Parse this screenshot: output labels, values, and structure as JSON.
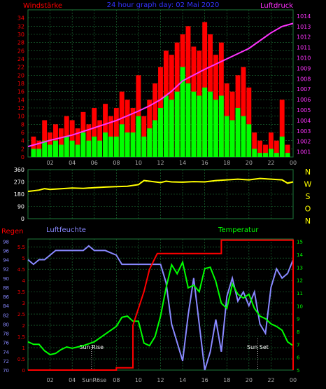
{
  "colors": {
    "background": "#000000",
    "gust": "#ff0000",
    "wind": "#00ff00",
    "pressure": "#ff33ff",
    "direction": "#ffff00",
    "rain": "#ff0000",
    "humidity": "#8888ff",
    "temperature": "#00ff00",
    "grid": "#1e7a3a",
    "title": "#3333ff"
  },
  "chart_data": [
    {
      "type": "bar",
      "title": "24 hour graph day: 02 Mai 2020",
      "ylabel": "Windstärke",
      "y2label": "Luftdruck",
      "ylim": [
        0,
        36
      ],
      "y2lim": [
        1000.5,
        1014.6
      ],
      "yticks": [
        "0",
        "2",
        "4",
        "6",
        "8",
        "10",
        "12",
        "14",
        "16",
        "18",
        "20",
        "22",
        "24",
        "26",
        "28",
        "30",
        "32",
        "34"
      ],
      "y2ticks": [
        "1001",
        "1002",
        "1003",
        "1004",
        "1005",
        "1006",
        "1007",
        "1008",
        "1009",
        "1010",
        "1011",
        "1012",
        "1013",
        "1014"
      ],
      "xticks": [
        "02",
        "04",
        "06",
        "08",
        "10",
        "12",
        "14",
        "16",
        "18",
        "20",
        "22",
        "00"
      ],
      "x_hours": [
        2,
        4,
        6,
        8,
        10,
        12,
        14,
        16,
        18,
        20,
        22,
        24
      ],
      "series": [
        {
          "name": "gust",
          "x": [
            0.5,
            1,
            1.5,
            2,
            2.5,
            3,
            3.5,
            4,
            4.5,
            5,
            5.5,
            6,
            6.5,
            7,
            7.5,
            8,
            8.5,
            9,
            9.5,
            10,
            10.5,
            11,
            11.5,
            12,
            12.5,
            13,
            13.5,
            14,
            14.5,
            15,
            15.5,
            16,
            16.5,
            17,
            17.5,
            18,
            18.5,
            19,
            19.5,
            20,
            20.5,
            21,
            21.5,
            22,
            22.5,
            23,
            23.5
          ],
          "values": [
            5,
            4,
            9,
            6,
            8,
            7,
            10,
            9,
            7,
            11,
            8,
            12,
            9,
            13,
            10,
            12,
            16,
            14,
            12,
            20,
            10,
            14,
            18,
            22,
            26,
            25,
            28,
            30,
            32,
            27,
            26,
            33,
            30,
            25,
            28,
            18,
            16,
            20,
            22,
            17,
            6,
            4,
            3,
            6,
            4,
            14,
            3
          ]
        },
        {
          "name": "wind",
          "x": [
            0.5,
            1,
            1.5,
            2,
            2.5,
            3,
            3.5,
            4,
            4.5,
            5,
            5.5,
            6,
            6.5,
            7,
            7.5,
            8,
            8.5,
            9,
            9.5,
            10,
            10.5,
            11,
            11.5,
            12,
            12.5,
            13,
            13.5,
            14,
            14.5,
            15,
            15.5,
            16,
            16.5,
            17,
            17.5,
            18,
            18.5,
            19,
            19.5,
            20,
            20.5,
            21,
            21.5,
            22,
            22.5,
            23,
            23.5
          ],
          "values": [
            2,
            2,
            4,
            3,
            4,
            3,
            5,
            4,
            3,
            6,
            4,
            5,
            4,
            6,
            5,
            5,
            8,
            6,
            6,
            10,
            5,
            7,
            9,
            12,
            15,
            14,
            16,
            22,
            18,
            16,
            15,
            17,
            16,
            14,
            15,
            10,
            9,
            12,
            10,
            8,
            2,
            1,
            1,
            2,
            1,
            5,
            1
          ]
        },
        {
          "name": "pressure",
          "x": [
            0,
            2,
            4,
            6,
            8,
            10,
            11,
            12,
            13,
            14,
            16,
            18,
            20,
            22,
            23,
            24
          ],
          "values": [
            1001.5,
            1002.1,
            1002.6,
            1003.3,
            1004.0,
            1004.9,
            1005.4,
            1006.0,
            1006.8,
            1007.8,
            1008.9,
            1009.9,
            1010.9,
            1012.4,
            1013.0,
            1013.3
          ]
        }
      ]
    },
    {
      "type": "line",
      "ylim": [
        0,
        360
      ],
      "yticks": [
        "0",
        "90",
        "180",
        "270",
        "360"
      ],
      "y2ticks": [
        "N",
        "W",
        "S",
        "O",
        "N"
      ],
      "xticks": [
        "02",
        "04",
        "06",
        "08",
        "10",
        "12",
        "14",
        "16",
        "18",
        "20",
        "22",
        "00"
      ],
      "x_hours": [
        2,
        4,
        6,
        8,
        10,
        12,
        14,
        16,
        18,
        20,
        22,
        24
      ],
      "series": [
        {
          "name": "direction",
          "x": [
            0,
            1,
            1.5,
            2,
            3,
            4,
            5,
            6,
            7,
            8,
            9,
            10,
            10.5,
            11,
            12,
            12.5,
            13,
            14,
            15,
            16,
            17,
            18,
            19,
            20,
            21,
            22,
            23,
            23.5,
            24
          ],
          "values": [
            200,
            210,
            220,
            215,
            220,
            225,
            222,
            228,
            232,
            235,
            238,
            250,
            280,
            275,
            265,
            275,
            270,
            268,
            272,
            270,
            280,
            285,
            290,
            285,
            295,
            290,
            285,
            260,
            270
          ]
        }
      ]
    },
    {
      "type": "line",
      "ylabel": "Regen",
      "y2label": "Luftfeuchte",
      "y3label": "Temperatur",
      "rain_ticks": [
        "0",
        "0.5",
        "1",
        "1.5",
        "2",
        "2.5",
        "3",
        "3.5",
        "4",
        "4.5",
        "5",
        "5.5"
      ],
      "humidity_ticks": [
        "70",
        "72",
        "74",
        "76",
        "78",
        "80",
        "82",
        "84",
        "86",
        "88",
        "90",
        "92",
        "94",
        "96",
        "98"
      ],
      "temperature_ticks": [
        "5",
        "6",
        "7",
        "8",
        "9",
        "10",
        "11",
        "12",
        "13",
        "14",
        "15"
      ],
      "xticks": [
        "02",
        "04",
        "SunR6se",
        "08",
        "10",
        "12",
        "14",
        "16",
        "18",
        "20",
        "22",
        "00"
      ],
      "x_hours": [
        2,
        4,
        6,
        8,
        10,
        12,
        14,
        16,
        18,
        20,
        22,
        24
      ],
      "annotations": [
        {
          "text": "Sun Rise",
          "x": 5.75
        },
        {
          "text": "Sun Set",
          "x": 20.8
        }
      ],
      "series": [
        {
          "name": "rain",
          "x": [
            0,
            8,
            8,
            9.5,
            9.5,
            10.5,
            11,
            11.5,
            11.7,
            17.5,
            17.5,
            24,
            24
          ],
          "values": [
            0,
            0,
            0.1,
            0.1,
            2.0,
            3.5,
            4.5,
            5.0,
            5.2,
            5.2,
            5.8,
            5.8,
            0
          ]
        },
        {
          "name": "humidity",
          "x": [
            0,
            0.5,
            1,
            1.5,
            2,
            2.5,
            3,
            3.5,
            4,
            5,
            5.5,
            6,
            7,
            8,
            8.5,
            9,
            9.5,
            10,
            10.5,
            11,
            11.5,
            12,
            12.5,
            13,
            13.5,
            14,
            14.5,
            15,
            15.5,
            16,
            16.5,
            17,
            17.5,
            18,
            18.5,
            19,
            19.5,
            20,
            20.5,
            21,
            21.5,
            22,
            22.5,
            23,
            23.5,
            24
          ],
          "values": [
            94,
            93,
            94,
            94,
            95,
            96,
            96,
            96,
            96,
            96,
            97,
            96,
            96,
            95,
            93,
            93,
            93,
            93,
            93,
            93,
            93,
            93,
            89,
            80,
            76,
            72,
            82,
            90,
            80,
            70,
            74,
            81,
            74,
            86,
            90,
            85,
            87,
            84,
            87,
            80,
            78,
            88,
            92,
            90,
            91,
            94
          ]
        },
        {
          "name": "temperature",
          "x": [
            0,
            0.5,
            1,
            1.5,
            2,
            2.5,
            3,
            3.5,
            4,
            5,
            6,
            7,
            8,
            8.5,
            9,
            9.5,
            10,
            10.5,
            11,
            11.5,
            12,
            12.5,
            13,
            13.5,
            14,
            14.5,
            15,
            15.5,
            16,
            16.5,
            17,
            17.5,
            18,
            18.5,
            19,
            19.5,
            20,
            20.5,
            21,
            21.5,
            22,
            22.5,
            23,
            23.5,
            24
          ],
          "values": [
            7.2,
            7.0,
            7.0,
            6.5,
            6.2,
            6.3,
            6.6,
            6.8,
            6.7,
            6.9,
            7.2,
            7.8,
            8.4,
            9.1,
            9.2,
            8.8,
            8.8,
            7.1,
            6.9,
            7.6,
            9.2,
            11.4,
            13.2,
            12.5,
            13.4,
            11.4,
            11.6,
            11.1,
            12.9,
            13.0,
            11.9,
            10.2,
            9.8,
            11.7,
            10.9,
            10.6,
            10.9,
            9.8,
            9.2,
            9.0,
            8.6,
            8.4,
            8.1,
            7.2,
            6.9
          ]
        }
      ]
    }
  ]
}
